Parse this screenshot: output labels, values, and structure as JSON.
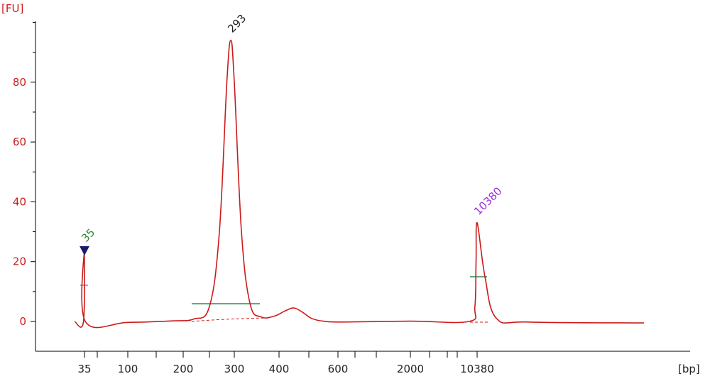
{
  "chart_data": {
    "type": "line",
    "y_unit_label": "[FU]",
    "x_unit_label": "[bp]",
    "ylim": [
      -10,
      100
    ],
    "y_ticks": [
      0,
      20,
      40,
      60,
      80
    ],
    "y_tick_labels": [
      "0",
      "20",
      "40",
      "60",
      "80"
    ],
    "x_tick_labels": [
      "35",
      "100",
      "200",
      "300",
      "400",
      "600",
      "2000",
      "10380"
    ],
    "grid": false,
    "colors": {
      "trace": "#cc1a1a",
      "axis": "#000000",
      "y_text": "#cc1a1a",
      "region_bar": "#2e8b57",
      "marker": "#1a1a6e",
      "label_35": "#2e8b2e",
      "label_293": "#222222",
      "label_10380": "#9b30d9"
    },
    "peaks": [
      {
        "label": "35",
        "bp": 35,
        "fu": 24
      },
      {
        "label": "293",
        "bp": 293,
        "fu": 94
      },
      {
        "bp": 450,
        "fu": 4.5
      },
      {
        "label": "10380",
        "bp": 10380,
        "fu": 33
      }
    ],
    "trace_points": [
      [
        25,
        0
      ],
      [
        34,
        0
      ],
      [
        35,
        24
      ],
      [
        36,
        0
      ],
      [
        100,
        -0.3
      ],
      [
        180,
        0.2
      ],
      [
        220,
        0.8
      ],
      [
        250,
        5
      ],
      [
        270,
        30
      ],
      [
        285,
        80
      ],
      [
        293,
        94
      ],
      [
        300,
        80
      ],
      [
        316,
        30
      ],
      [
        335,
        6
      ],
      [
        360,
        1.5
      ],
      [
        390,
        1.8
      ],
      [
        420,
        3.5
      ],
      [
        450,
        4.5
      ],
      [
        480,
        3
      ],
      [
        510,
        1
      ],
      [
        550,
        0.1
      ],
      [
        700,
        -0.2
      ],
      [
        2000,
        0.1
      ],
      [
        9000,
        0
      ],
      [
        10000,
        5
      ],
      [
        10200,
        20
      ],
      [
        10380,
        33
      ],
      [
        10550,
        15
      ],
      [
        10800,
        1
      ],
      [
        11500,
        -0.2
      ],
      [
        14000,
        -0.5
      ]
    ]
  }
}
